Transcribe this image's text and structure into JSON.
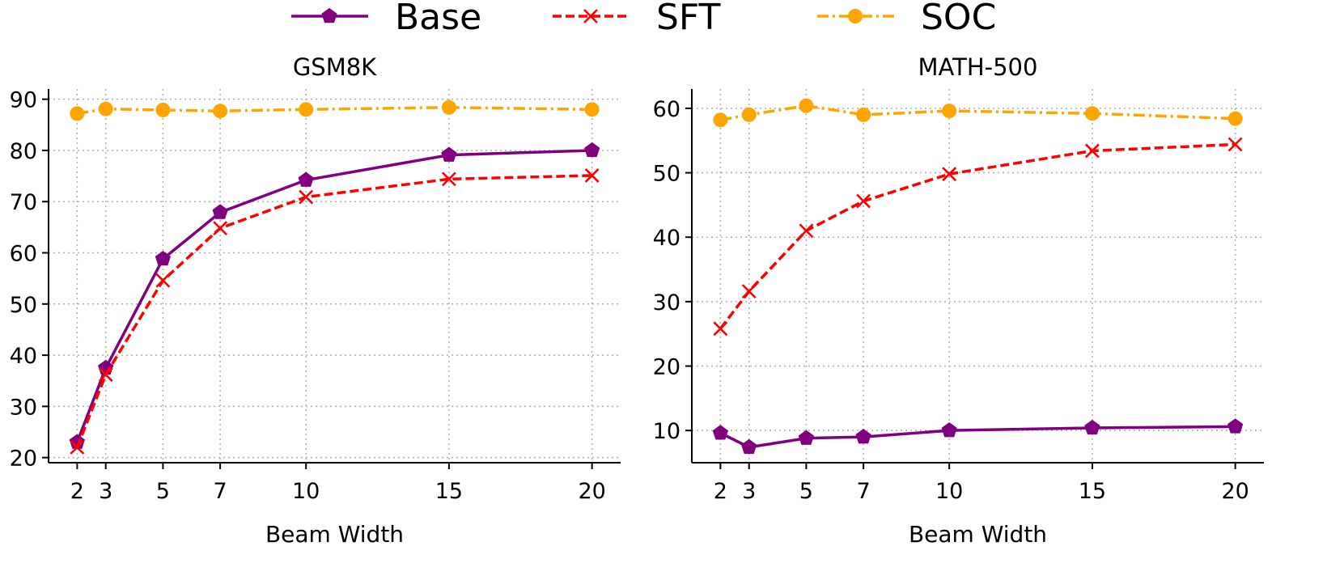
{
  "legend": [
    {
      "name": "Base",
      "color": "#800080",
      "marker": "pentagon",
      "dash": "solid"
    },
    {
      "name": "SFT",
      "color": "#ff0000",
      "marker": "x",
      "dash": "dashed"
    },
    {
      "name": "SOC",
      "color": "#ffa500",
      "marker": "circle",
      "dash": "dashdot"
    }
  ],
  "chart_data": [
    {
      "type": "line",
      "title": "GSM8K",
      "xlabel": "Beam Width",
      "ylabel": "",
      "x": [
        2,
        3,
        5,
        7,
        10,
        15,
        20
      ],
      "xticks": [
        2,
        3,
        5,
        7,
        10,
        15,
        20
      ],
      "yticks": [
        20,
        30,
        40,
        50,
        60,
        70,
        80,
        90
      ],
      "xlim": [
        1,
        21
      ],
      "ylim": [
        19,
        92
      ],
      "grid": true,
      "series": [
        {
          "name": "Base",
          "values": [
            23.0,
            37.5,
            58.8,
            67.9,
            74.2,
            79.1,
            80.0
          ]
        },
        {
          "name": "SFT",
          "values": [
            22.0,
            36.2,
            54.6,
            64.8,
            70.9,
            74.4,
            75.1
          ]
        },
        {
          "name": "SOC",
          "values": [
            87.2,
            88.1,
            87.9,
            87.7,
            88.0,
            88.4,
            88.0
          ]
        }
      ]
    },
    {
      "type": "line",
      "title": "MATH-500",
      "xlabel": "Beam Width",
      "ylabel": "",
      "x": [
        2,
        3,
        5,
        7,
        10,
        15,
        20
      ],
      "xticks": [
        2,
        3,
        5,
        7,
        10,
        15,
        20
      ],
      "yticks": [
        10,
        20,
        30,
        40,
        50,
        60
      ],
      "xlim": [
        1,
        21
      ],
      "ylim": [
        5,
        63
      ],
      "grid": true,
      "series": [
        {
          "name": "Base",
          "values": [
            9.6,
            7.4,
            8.8,
            9.0,
            10.0,
            10.4,
            10.6
          ]
        },
        {
          "name": "SFT",
          "values": [
            25.8,
            31.6,
            41.0,
            45.6,
            49.8,
            53.4,
            54.4
          ]
        },
        {
          "name": "SOC",
          "values": [
            58.2,
            59.0,
            60.4,
            59.0,
            59.6,
            59.2,
            58.4
          ]
        }
      ]
    }
  ]
}
